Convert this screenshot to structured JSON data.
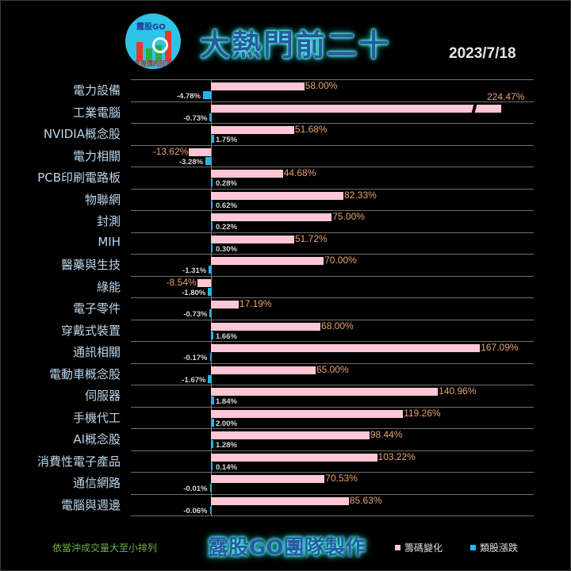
{
  "header": {
    "logo_text": "露股GO",
    "logo_subtext": "依周價的回測",
    "title": "大熱門前二十",
    "date": "2023/7/18"
  },
  "footer": {
    "sort_note": "依當沖成交量大至小排列",
    "brand": "露股GO團隊製作",
    "legend": [
      {
        "label": "籌碼變化",
        "color": "#ffc7d6"
      },
      {
        "label": "類股漲跌",
        "color": "#1fb8ee"
      }
    ]
  },
  "colors": {
    "background": "#000000",
    "chip_change": "#ffc7d6",
    "sector_change": "#1fb8ee",
    "chip_label": "#e8a46f",
    "category_label": "#bcd6ea",
    "gridline": "#6f6f6f"
  },
  "chart_data": {
    "type": "bar",
    "orientation": "horizontal",
    "title": "大熱門前二十",
    "subtitle": "2023/7/18",
    "xlabel": "",
    "ylabel": "",
    "grid": true,
    "legend_position": "bottom-right",
    "categories": [
      "電力設備",
      "工業電腦",
      "NVIDIA概念股",
      "電力相關",
      "PCB印刷電路板",
      "物聯網",
      "封測",
      "MIH",
      "醫藥與生技",
      "綠能",
      "電子零件",
      "穿戴式裝置",
      "通訊相關",
      "電動車概念股",
      "伺服器",
      "手機代工",
      "AI概念股",
      "消費性電子產品",
      "通信網路",
      "電腦與週邊"
    ],
    "series": [
      {
        "name": "籌碼變化",
        "unit": "%",
        "values": [
          58.0,
          224.47,
          51.68,
          -13.62,
          44.68,
          82.33,
          75.0,
          51.72,
          70.0,
          -8.54,
          17.19,
          68.0,
          167.09,
          65.0,
          140.96,
          119.26,
          98.44,
          103.22,
          70.53,
          85.63
        ],
        "labels": [
          "58.00%",
          "224.47%",
          "51.68%",
          "-13.62%",
          "44.68%",
          "82.33%",
          "75.00%",
          "51.72%",
          "70.00%",
          "-8.54%",
          "17.19%",
          "68.00%",
          "167.09%",
          "65.00%",
          "140.96%",
          "119.26%",
          "98.44%",
          "103.22%",
          "70.53%",
          "85.63%"
        ]
      },
      {
        "name": "類股漲跌",
        "unit": "%",
        "values": [
          -4.78,
          -0.73,
          1.75,
          -3.28,
          0.28,
          0.62,
          0.22,
          0.3,
          -1.31,
          -1.8,
          -0.73,
          1.66,
          -0.17,
          -1.67,
          1.84,
          2.0,
          1.28,
          0.14,
          -0.01,
          -0.06
        ],
        "labels": [
          "-4.78%",
          "-0.73%",
          "1.75%",
          "-3.28%",
          "0.28%",
          "0.62%",
          "0.22%",
          "0.30%",
          "-1.31%",
          "-1.80%",
          "-0.73%",
          "1.66%",
          "-0.17%",
          "-1.67%",
          "1.84%",
          "2.00%",
          "1.28%",
          "0.14%",
          "-0.01%",
          "-0.06%"
        ]
      }
    ],
    "notes": "工業電腦 bar is drawn with an axis break (truncated)."
  }
}
